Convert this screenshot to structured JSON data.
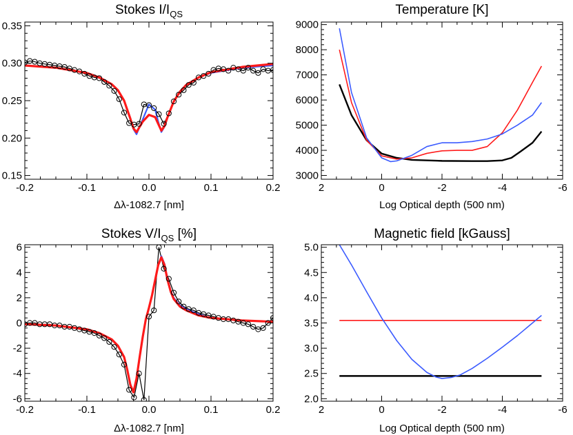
{
  "chart_data": [
    {
      "type": "line",
      "title": "Stokes I/I",
      "title_sub": "QS",
      "title_suffix": "",
      "xlabel": "Δλ-1082.7 [nm]",
      "ylabel": "",
      "xlim": [
        -0.2,
        0.2
      ],
      "ylim": [
        0.145,
        0.355
      ],
      "xticks": [
        -0.2,
        -0.1,
        0.0,
        0.1,
        0.2
      ],
      "xtick_labels": [
        "-0.2",
        "-0.1",
        "0.0",
        "0.1",
        "0.2"
      ],
      "yticks": [
        0.15,
        0.2,
        0.25,
        0.3,
        0.35
      ],
      "ytick_labels": [
        "0.15",
        "0.20",
        "0.25",
        "0.30",
        "0.35"
      ],
      "grid": false,
      "observed": {
        "x": [
          -0.2,
          -0.192,
          -0.184,
          -0.176,
          -0.168,
          -0.16,
          -0.152,
          -0.144,
          -0.136,
          -0.128,
          -0.12,
          -0.112,
          -0.104,
          -0.096,
          -0.088,
          -0.08,
          -0.072,
          -0.064,
          -0.056,
          -0.048,
          -0.04,
          -0.032,
          -0.024,
          -0.016,
          -0.008,
          0.0,
          0.008,
          0.016,
          0.024,
          0.032,
          0.04,
          0.048,
          0.056,
          0.064,
          0.072,
          0.08,
          0.088,
          0.096,
          0.104,
          0.112,
          0.12,
          0.128,
          0.136,
          0.144,
          0.152,
          0.16,
          0.168,
          0.176,
          0.184,
          0.192,
          0.2
        ],
        "y": [
          0.301,
          0.303,
          0.302,
          0.3,
          0.299,
          0.298,
          0.297,
          0.296,
          0.295,
          0.293,
          0.291,
          0.289,
          0.286,
          0.283,
          0.281,
          0.28,
          0.275,
          0.27,
          0.263,
          0.252,
          0.234,
          0.22,
          0.218,
          0.219,
          0.245,
          0.244,
          0.24,
          0.232,
          0.219,
          0.233,
          0.249,
          0.258,
          0.264,
          0.271,
          0.274,
          0.281,
          0.283,
          0.286,
          0.291,
          0.293,
          0.292,
          0.29,
          0.294,
          0.292,
          0.29,
          0.294,
          0.29,
          0.287,
          0.292,
          0.29,
          0.291
        ]
      },
      "series": [
        {
          "name": "",
          "color": "#3b5bff",
          "x": [
            -0.2,
            -0.15,
            -0.1,
            -0.08,
            -0.06,
            -0.05,
            -0.04,
            -0.03,
            -0.025,
            -0.02,
            -0.01,
            0.0,
            0.01,
            0.015,
            0.02,
            0.025,
            0.03,
            0.04,
            0.05,
            0.06,
            0.08,
            0.1,
            0.15,
            0.2
          ],
          "y": [
            0.297,
            0.294,
            0.287,
            0.281,
            0.272,
            0.264,
            0.25,
            0.227,
            0.212,
            0.205,
            0.225,
            0.245,
            0.238,
            0.222,
            0.208,
            0.215,
            0.228,
            0.249,
            0.262,
            0.271,
            0.281,
            0.287,
            0.294,
            0.297
          ]
        },
        {
          "name": "",
          "color": "#ff1a1a",
          "x": [
            -0.2,
            -0.15,
            -0.1,
            -0.08,
            -0.06,
            -0.05,
            -0.04,
            -0.03,
            -0.025,
            -0.02,
            -0.01,
            0.0,
            0.01,
            0.015,
            0.02,
            0.025,
            0.03,
            0.04,
            0.05,
            0.06,
            0.08,
            0.1,
            0.15,
            0.2
          ],
          "y": [
            0.297,
            0.294,
            0.287,
            0.281,
            0.272,
            0.264,
            0.25,
            0.226,
            0.213,
            0.208,
            0.222,
            0.231,
            0.228,
            0.219,
            0.21,
            0.216,
            0.228,
            0.249,
            0.262,
            0.271,
            0.281,
            0.288,
            0.295,
            0.299
          ]
        }
      ]
    },
    {
      "type": "line",
      "title": "Temperature [K]",
      "xlabel": "Log Optical depth (500 nm)",
      "ylabel": "",
      "xlim": [
        2,
        -6
      ],
      "ylim": [
        2850,
        9100
      ],
      "xticks": [
        2,
        0,
        -2,
        -4,
        -6
      ],
      "xtick_labels": [
        "2",
        "0",
        "-2",
        "-4",
        "-6"
      ],
      "yticks": [
        3000,
        4000,
        5000,
        6000,
        7000,
        8000,
        9000
      ],
      "ytick_labels": [
        "3000",
        "4000",
        "5000",
        "6000",
        "7000",
        "8000",
        "9000"
      ],
      "grid": false,
      "series": [
        {
          "name": "",
          "color": "#000000",
          "x": [
            1.4,
            1.0,
            0.5,
            0.0,
            -0.5,
            -1.0,
            -2.0,
            -3.0,
            -3.5,
            -4.0,
            -4.3,
            -4.6,
            -5.0,
            -5.3
          ],
          "y": [
            6620,
            5400,
            4400,
            3870,
            3700,
            3620,
            3580,
            3570,
            3570,
            3600,
            3700,
            3950,
            4300,
            4750
          ]
        },
        {
          "name": "",
          "color": "#ff1a1a",
          "x": [
            1.4,
            1.0,
            0.5,
            0.0,
            -0.5,
            -1.0,
            -1.5,
            -2.0,
            -2.5,
            -3.0,
            -3.5,
            -4.0,
            -4.5,
            -5.0,
            -5.3
          ],
          "y": [
            8000,
            5900,
            4400,
            3780,
            3650,
            3700,
            3880,
            3980,
            4000,
            4000,
            4150,
            4700,
            5600,
            6700,
            7350
          ]
        },
        {
          "name": "",
          "color": "#3b5bff",
          "x": [
            1.4,
            1.0,
            0.5,
            0.0,
            -0.3,
            -0.5,
            -1.0,
            -1.5,
            -2.0,
            -2.5,
            -3.0,
            -3.5,
            -4.0,
            -4.5,
            -5.0,
            -5.3
          ],
          "y": [
            8850,
            6300,
            4500,
            3700,
            3550,
            3580,
            3800,
            4150,
            4300,
            4300,
            4350,
            4450,
            4650,
            5000,
            5400,
            5900
          ]
        }
      ]
    },
    {
      "type": "line",
      "title": "Stokes V/I",
      "title_sub": "QS",
      "title_suffix": " [%]",
      "xlabel": "Δλ-1082.7 [nm]",
      "ylabel": "",
      "xlim": [
        -0.2,
        0.2
      ],
      "ylim": [
        -6.2,
        6.2
      ],
      "xticks": [
        -0.2,
        -0.1,
        0.0,
        0.1,
        0.2
      ],
      "xtick_labels": [
        "-0.2",
        "-0.1",
        "0.0",
        "0.1",
        "0.2"
      ],
      "yticks": [
        -6,
        -4,
        -2,
        0,
        2,
        4,
        6
      ],
      "ytick_labels": [
        "-6",
        "-4",
        "-2",
        "0",
        "2",
        "4",
        "6"
      ],
      "grid": false,
      "observed": {
        "x": [
          -0.2,
          -0.192,
          -0.184,
          -0.176,
          -0.168,
          -0.16,
          -0.152,
          -0.144,
          -0.136,
          -0.128,
          -0.12,
          -0.112,
          -0.104,
          -0.096,
          -0.088,
          -0.08,
          -0.072,
          -0.064,
          -0.056,
          -0.048,
          -0.04,
          -0.032,
          -0.024,
          -0.016,
          -0.008,
          0.0,
          0.008,
          0.016,
          0.024,
          0.032,
          0.04,
          0.048,
          0.056,
          0.064,
          0.072,
          0.08,
          0.088,
          0.096,
          0.104,
          0.112,
          0.12,
          0.128,
          0.136,
          0.144,
          0.152,
          0.16,
          0.168,
          0.176,
          0.184,
          0.192,
          0.2
        ],
        "y": [
          -0.1,
          0.0,
          0.0,
          -0.1,
          -0.1,
          -0.1,
          -0.2,
          -0.2,
          -0.3,
          -0.3,
          -0.4,
          -0.5,
          -0.6,
          -0.7,
          -0.8,
          -1.0,
          -1.2,
          -1.5,
          -1.9,
          -2.5,
          -3.3,
          -5.3,
          -5.9,
          -4.0,
          -6.1,
          0.5,
          1.0,
          6.0,
          4.3,
          3.5,
          2.4,
          1.7,
          1.3,
          1.1,
          1.0,
          0.8,
          0.7,
          0.6,
          0.5,
          0.4,
          0.3,
          0.3,
          0.2,
          0.1,
          0.0,
          -0.1,
          -0.3,
          -0.5,
          -0.4,
          0.0,
          0.4
        ]
      },
      "series": [
        {
          "name": "",
          "color": "#3b5bff",
          "x": [
            -0.2,
            -0.15,
            -0.1,
            -0.08,
            -0.06,
            -0.05,
            -0.04,
            -0.035,
            -0.03,
            -0.025,
            -0.02,
            -0.015,
            -0.01,
            -0.005,
            0.0,
            0.005,
            0.01,
            0.015,
            0.02,
            0.025,
            0.03,
            0.035,
            0.04,
            0.05,
            0.06,
            0.08,
            0.1,
            0.15,
            0.2
          ],
          "y": [
            -0.1,
            -0.2,
            -0.5,
            -0.8,
            -1.3,
            -1.8,
            -2.7,
            -3.6,
            -4.8,
            -5.5,
            -4.5,
            -2.8,
            -1.2,
            0.3,
            1.2,
            2.2,
            3.4,
            4.6,
            5.3,
            4.7,
            3.5,
            2.6,
            2.0,
            1.4,
            1.1,
            0.7,
            0.4,
            0.2,
            0.1
          ]
        },
        {
          "name": "",
          "color": "#ff1a1a",
          "x": [
            -0.2,
            -0.15,
            -0.1,
            -0.08,
            -0.06,
            -0.05,
            -0.04,
            -0.035,
            -0.03,
            -0.025,
            -0.02,
            -0.015,
            -0.01,
            -0.005,
            0.0,
            0.005,
            0.01,
            0.015,
            0.02,
            0.025,
            0.03,
            0.035,
            0.04,
            0.05,
            0.06,
            0.08,
            0.1,
            0.15,
            0.2
          ],
          "y": [
            -0.1,
            -0.2,
            -0.5,
            -0.8,
            -1.3,
            -1.8,
            -2.7,
            -3.7,
            -4.9,
            -5.5,
            -4.4,
            -2.7,
            -1.1,
            0.3,
            1.2,
            2.2,
            3.4,
            4.6,
            5.2,
            4.6,
            3.4,
            2.5,
            1.9,
            1.3,
            1.0,
            0.6,
            0.4,
            0.2,
            0.1
          ]
        }
      ]
    },
    {
      "type": "line",
      "title": "Magnetic field [kGauss]",
      "xlabel": "Log Optical depth (500 nm)",
      "ylabel": "",
      "xlim": [
        2,
        -6
      ],
      "ylim": [
        1.95,
        5.05
      ],
      "xticks": [
        2,
        0,
        -2,
        -4,
        -6
      ],
      "xtick_labels": [
        "2",
        "0",
        "-2",
        "-4",
        "-6"
      ],
      "yticks": [
        2.0,
        2.5,
        3.0,
        3.5,
        4.0,
        4.5,
        5.0
      ],
      "ytick_labels": [
        "2.0",
        "2.5",
        "3.0",
        "3.5",
        "4.0",
        "4.5",
        "5.0"
      ],
      "grid": false,
      "series": [
        {
          "name": "",
          "color": "#000000",
          "x": [
            1.4,
            -5.3
          ],
          "y": [
            2.45,
            2.45
          ]
        },
        {
          "name": "",
          "color": "#ff1a1a",
          "x": [
            1.4,
            -5.3
          ],
          "y": [
            3.55,
            3.55
          ]
        },
        {
          "name": "",
          "color": "#3b5bff",
          "x": [
            1.4,
            1.0,
            0.5,
            0.0,
            -0.5,
            -1.0,
            -1.5,
            -1.8,
            -2.0,
            -2.3,
            -2.6,
            -3.0,
            -3.5,
            -4.0,
            -4.5,
            -5.0,
            -5.3
          ],
          "y": [
            5.05,
            4.65,
            4.12,
            3.6,
            3.15,
            2.78,
            2.52,
            2.43,
            2.4,
            2.42,
            2.47,
            2.6,
            2.8,
            3.02,
            3.25,
            3.5,
            3.65
          ]
        }
      ]
    }
  ]
}
